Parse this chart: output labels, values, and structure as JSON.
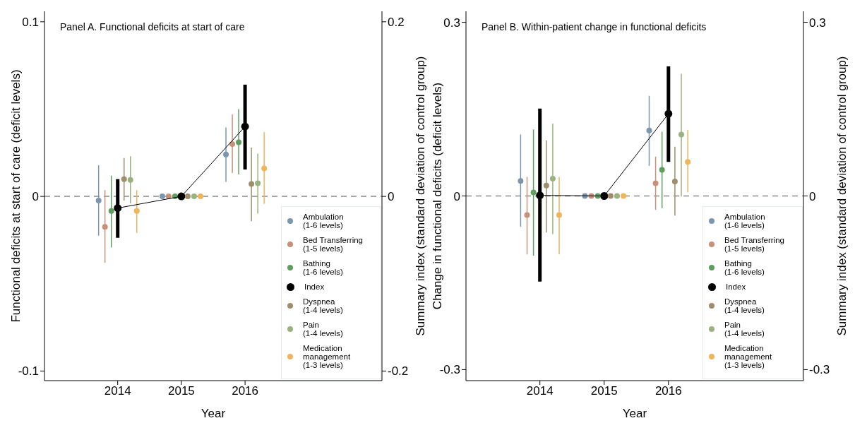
{
  "chart_data": [
    {
      "type": "scatter",
      "title": "Panel A. Functional deficits at start of care",
      "xlabel": "Year",
      "ylabel": "Functional deficits at start of care (deficit levels)",
      "y2label": "Summary index (standard deviation of control group)",
      "xlim": [
        2012.85,
        2018.15
      ],
      "xticks": [
        2014,
        2015,
        2016
      ],
      "ylim": [
        -0.1055,
        0.106
      ],
      "yticks": [
        -0.1,
        0,
        0.1
      ],
      "y2lim": [
        -0.211,
        0.212
      ],
      "y2ticks": [
        -0.2,
        0,
        0.2
      ],
      "ref_lines": [
        {
          "axis": "y",
          "value": 0,
          "color": "#8c8c8c",
          "line_style": "dashed"
        }
      ],
      "legend": "bottom right",
      "marker": "circle",
      "series": [
        {
          "name": "Ambulation\n(1-6 levels)",
          "color": "#7b96ad",
          "x": [
            2013.7,
            2014.7,
            2015.7
          ],
          "values": [
            -0.0024,
            0,
            0.024
          ],
          "errors": [
            [
              -0.0225,
              0.0178
            ],
            null,
            [
              0.0083,
              0.0395
            ]
          ]
        },
        {
          "name": "Bed Transferring\n(1-5 levels)",
          "color": "#c8917a",
          "x": [
            2013.8,
            2014.8,
            2015.8
          ],
          "values": [
            -0.0174,
            0,
            0.03
          ],
          "errors": [
            [
              -0.038,
              0.0036
            ],
            null,
            [
              0.0134,
              0.047
            ]
          ]
        },
        {
          "name": "Bathing\n(1-6 levels)",
          "color": "#5f9e5f",
          "x": [
            2013.9,
            2014.9,
            2015.9
          ],
          "values": [
            -0.0083,
            0,
            0.031
          ],
          "errors": [
            [
              -0.0292,
              0.0119
            ],
            null,
            [
              0.0126,
              0.05
            ]
          ]
        },
        {
          "name": "Index",
          "type": "line",
          "color": "#000000",
          "x": [
            2014,
            2015,
            2016
          ],
          "values": [
            -0.0067,
            0,
            0.04
          ],
          "errors": [
            [
              -0.0237,
              0.0099
            ],
            null,
            [
              0.0154,
              0.064
            ]
          ]
        },
        {
          "name": "Dyspnea\n(1-4 levels)",
          "color": "#9e8e6e",
          "x": [
            2014.1,
            2015.1,
            2016.1
          ],
          "values": [
            0.0099,
            0,
            0.0071
          ],
          "errors": [
            [
              -0.0024,
              0.022
            ],
            null,
            [
              -0.0142,
              0.028
            ]
          ]
        },
        {
          "name": "Pain\n(1-4 levels)",
          "color": "#9ab27f",
          "x": [
            2014.2,
            2015.2,
            2016.2
          ],
          "values": [
            0.0095,
            0,
            0.0075
          ],
          "errors": [
            [
              -0.004,
              0.023
            ],
            null,
            [
              -0.0099,
              0.0245
            ]
          ]
        },
        {
          "name": "Medication\nmanagement\n(1-3 levels)",
          "color": "#f0b45a",
          "x": [
            2014.3,
            2015.3,
            2016.3
          ],
          "values": [
            -0.0083,
            0,
            0.016
          ],
          "errors": [
            [
              -0.021,
              0.0036
            ],
            null,
            [
              -0.0043,
              0.0368
            ]
          ]
        }
      ]
    },
    {
      "type": "scatter",
      "title": "Panel B. Within-patient change in functional deficits",
      "xlabel": "Year",
      "ylabel": "Change in functional deficits (deficit levels)",
      "y2label": "Summary index (standard deviation of control group)",
      "xlim": [
        2012.85,
        2018.1
      ],
      "xticks": [
        2014,
        2015,
        2016
      ],
      "ylim": [
        -0.319,
        0.319
      ],
      "yticks": [
        -0.3,
        0,
        0.3
      ],
      "y2lim": [
        -0.319,
        0.319
      ],
      "y2ticks": [
        -0.3,
        0,
        0.3
      ],
      "ref_lines": [
        {
          "axis": "y",
          "value": 0,
          "color": "#8c8c8c",
          "line_style": "dashed"
        }
      ],
      "legend": "bottom right",
      "marker": "circle",
      "series": [
        {
          "name": "Ambulation\n(1-6 levels)",
          "color": "#7b96ad",
          "x": [
            2013.7,
            2014.7,
            2015.7
          ],
          "values": [
            0.026,
            0,
            0.113
          ],
          "errors": [
            [
              -0.053,
              0.106
            ],
            null,
            [
              0.052,
              0.173
            ]
          ]
        },
        {
          "name": "Bed Transferring\n(1-5 levels)",
          "color": "#c8917a",
          "x": [
            2013.8,
            2014.8,
            2015.8
          ],
          "values": [
            -0.033,
            0,
            0.022
          ],
          "errors": [
            [
              -0.101,
              0.033
            ],
            null,
            [
              -0.024,
              0.068
            ]
          ]
        },
        {
          "name": "Bathing\n(1-6 levels)",
          "color": "#5f9e5f",
          "x": [
            2013.9,
            2014.9,
            2015.9
          ],
          "values": [
            0.006,
            0,
            0.045
          ],
          "errors": [
            [
              -0.103,
              0.115
            ],
            null,
            [
              -0.021,
              0.111
            ]
          ]
        },
        {
          "name": "Index",
          "type": "line",
          "color": "#000000",
          "x": [
            2014,
            2015,
            2016
          ],
          "values": [
            0.001,
            0,
            0.142
          ],
          "errors": [
            [
              -0.148,
              0.151
            ],
            null,
            [
              0.059,
              0.224
            ]
          ]
        },
        {
          "name": "Dyspnea\n(1-4 levels)",
          "color": "#9e8e6e",
          "x": [
            2014.1,
            2015.1,
            2016.1
          ],
          "values": [
            0.018,
            0,
            0.025
          ],
          "errors": [
            [
              -0.063,
              0.096
            ],
            null,
            [
              -0.034,
              0.085
            ]
          ]
        },
        {
          "name": "Pain\n(1-4 levels)",
          "color": "#9ab27f",
          "x": [
            2014.2,
            2015.2,
            2016.2
          ],
          "values": [
            0.03,
            0,
            0.106
          ],
          "errors": [
            [
              -0.066,
              0.125
            ],
            null,
            [
              -0.001,
              0.211
            ]
          ]
        },
        {
          "name": "Medication\nmanagement\n(1-3 levels)",
          "color": "#f0b45a",
          "x": [
            2014.3,
            2015.3,
            2016.3
          ],
          "values": [
            -0.033,
            0,
            0.059
          ],
          "errors": [
            [
              -0.101,
              0.033
            ],
            null,
            [
              0.006,
              0.114
            ]
          ]
        }
      ]
    }
  ]
}
